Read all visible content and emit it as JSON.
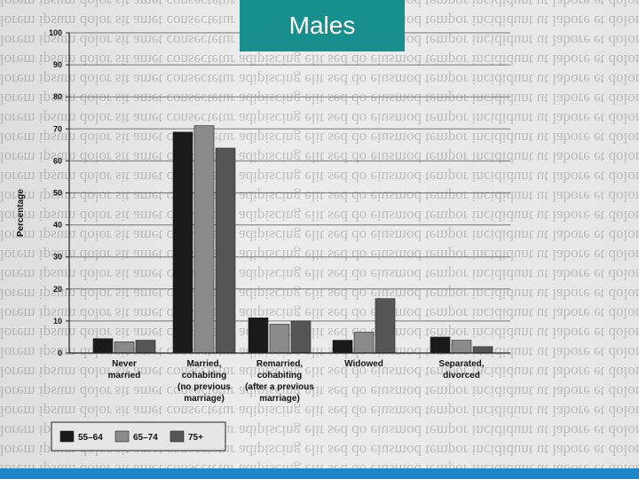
{
  "slide": {
    "title": "Males",
    "title_bg": "#178f8f",
    "bottom_bar_color": "#1e86c8"
  },
  "chart_data": {
    "type": "bar",
    "title": "Males",
    "ylabel": "Percentage",
    "ylim": [
      0,
      100
    ],
    "yticks": [
      0,
      10,
      20,
      30,
      40,
      50,
      60,
      70,
      80,
      90,
      100
    ],
    "grid": true,
    "legend_position": "bottom-left",
    "categories": [
      [
        "Never",
        "married"
      ],
      [
        "Married,",
        "cohabiting",
        "(no previous",
        "marriage)"
      ],
      [
        "Remarried,",
        "cohabiting",
        "(after a previous",
        "marriage)"
      ],
      [
        "Widowed"
      ],
      [
        "Separated,",
        "divorced"
      ]
    ],
    "series": [
      {
        "name": "55–64",
        "color": "#1a1a1a",
        "values": [
          4.5,
          69,
          11,
          4,
          5
        ]
      },
      {
        "name": "65–74",
        "color": "#8a8a8a",
        "values": [
          3.5,
          71,
          9,
          6.5,
          4
        ]
      },
      {
        "name": "75+",
        "color": "#555555",
        "values": [
          4,
          64,
          10,
          17,
          2
        ]
      }
    ]
  }
}
